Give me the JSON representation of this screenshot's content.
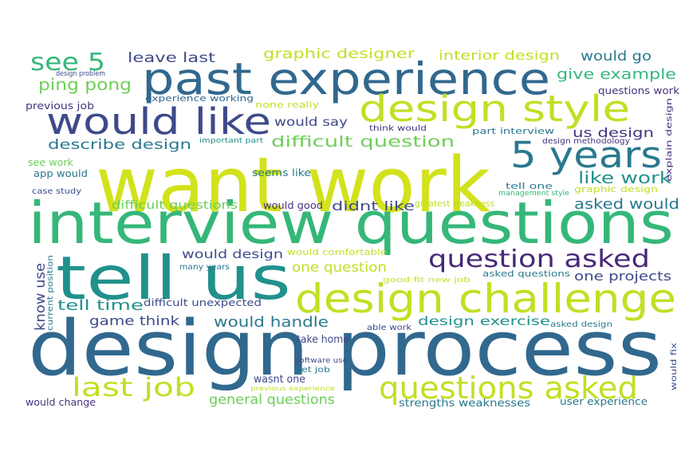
{
  "words": [
    "want work",
    "design process",
    "interview questions",
    "tell us",
    "past experience",
    "design challenge",
    "design style",
    "would like",
    "5 years",
    "questions asked",
    "question asked",
    "last job",
    "see 5",
    "ping pong",
    "leave last",
    "graphic designer",
    "interior design",
    "would go",
    "give example",
    "questions work",
    "previous job",
    "experience working",
    "design problem",
    "none really",
    "would say",
    "describe design",
    "difficult question",
    "think would",
    "part interview",
    "us design",
    "design methodology",
    "important part",
    "see work",
    "app would",
    "case study",
    "seems like",
    "like work",
    "tell one",
    "graphic design",
    "management style",
    "explain design",
    "difficult questions",
    "would good",
    "didnt like",
    "greatest weakness",
    "asked would",
    "know use",
    "current position",
    "would design",
    "would comfortable",
    "one question",
    "many years",
    "asked questions",
    "one projects",
    "good fit new job",
    "tell time",
    "difficult unexpected",
    "game think",
    "would handle",
    "design exercise",
    "asked design",
    "able work",
    "take home",
    "software use",
    "get job",
    "wasnt one",
    "previous experience",
    "would fix",
    "general questions",
    "would change",
    "strengths weaknesses",
    "user experience"
  ]
}
